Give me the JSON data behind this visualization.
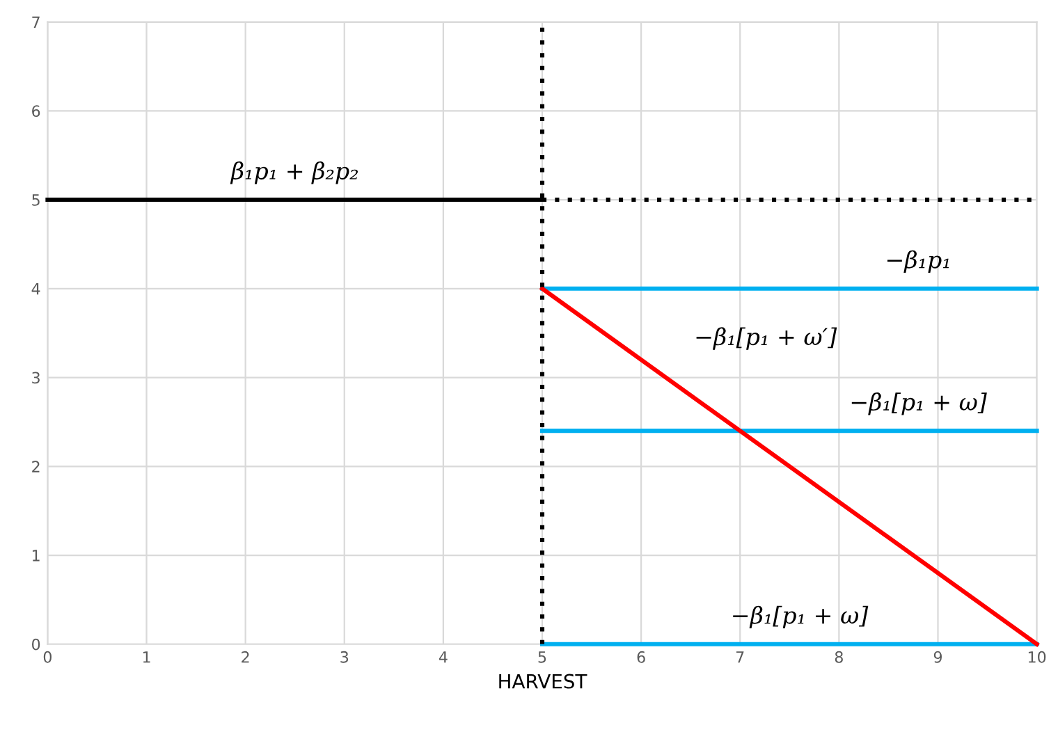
{
  "chart_data": {
    "type": "line",
    "xlabel": "HARVEST",
    "xlim": [
      0,
      10
    ],
    "ylim": [
      0,
      7
    ],
    "xticks": [
      0,
      1,
      2,
      3,
      4,
      5,
      6,
      7,
      8,
      9,
      10
    ],
    "yticks": [
      0,
      1,
      2,
      3,
      4,
      5,
      6,
      7
    ],
    "grid": true,
    "series": [
      {
        "color": "#000000",
        "x": [
          0,
          5
        ],
        "values": [
          5,
          5
        ]
      },
      {
        "color": "#000000",
        "x": [
          5,
          10
        ],
        "values": [
          5,
          5
        ],
        "line_style": "dotted"
      },
      {
        "color": "#00b0f0",
        "x": [
          5,
          10
        ],
        "values": [
          4,
          4
        ]
      },
      {
        "color": "#00b0f0",
        "x": [
          5,
          10
        ],
        "values": [
          2.4,
          2.4
        ]
      },
      {
        "color": "#00b0f0",
        "x": [
          5,
          10
        ],
        "values": [
          0,
          0
        ]
      },
      {
        "color": "#ff0000",
        "x": [
          5,
          10
        ],
        "values": [
          4,
          0
        ]
      }
    ],
    "ref_lines": [
      {
        "axis": "x",
        "value": 5,
        "color": "#000000",
        "line_style": "dotted"
      }
    ],
    "annotations": [
      {
        "text": "β₁p₁ + β₂p₂",
        "x": 2.5,
        "y": 5
      },
      {
        "text": "−β₁p₁",
        "x": 8.8,
        "y": 4
      },
      {
        "text": "−β₁[p₁ + ω′]",
        "x": 6.3,
        "y": 2.96
      },
      {
        "text": "−β₁[p₁ + ω]",
        "x": 8.8,
        "y": 2.4
      },
      {
        "text": "−β₁[p₁ + ω]",
        "x": 7.6,
        "y": 0
      }
    ]
  }
}
